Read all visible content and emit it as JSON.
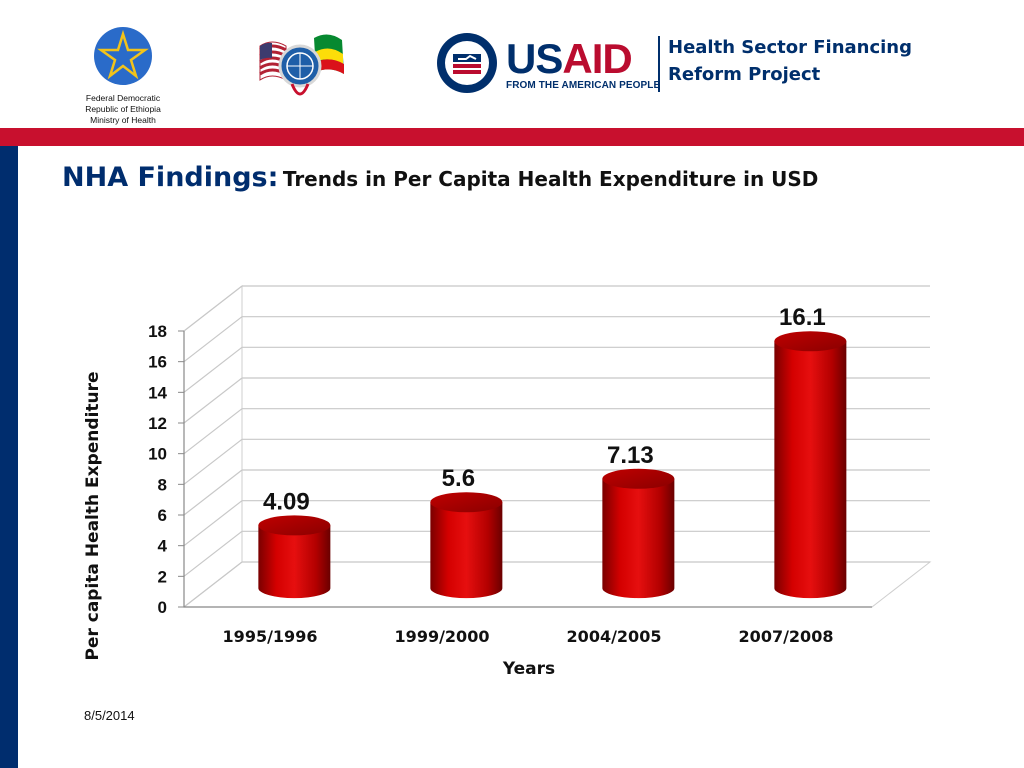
{
  "header": {
    "moh_lines": [
      "Federal Democratic",
      "Republic of Ethiopia",
      "Ministry of Health"
    ],
    "usaid_us": "US",
    "usaid_aid": "AID",
    "usaid_tagline": "FROM THE AMERICAN PEOPLE",
    "project_line1": "Health Sector Financing",
    "project_line2": "Reform Project",
    "colors": {
      "red_bar": "#c8102e",
      "blue_bar": "#002d6e"
    }
  },
  "slide": {
    "title_main": "NHA Findings:",
    "title_sub": "Trends in Per Capita Health Expenditure in USD",
    "date": "8/5/2014"
  },
  "chart_data": {
    "type": "bar",
    "categories": [
      "1995/1996",
      "1999/2000",
      "2004/2005",
      "2007/2008"
    ],
    "values": [
      4.09,
      5.6,
      7.13,
      16.1
    ],
    "data_labels": [
      "4.09",
      "5.6",
      "7.13",
      "16.1"
    ],
    "xlabel": "Years",
    "ylabel": "Per capita Health Expenditure",
    "ylim": [
      0,
      18
    ],
    "yticks": [
      "0",
      "2",
      "4",
      "6",
      "8",
      "10",
      "12",
      "14",
      "16",
      "18"
    ],
    "grid": true,
    "style": "3d-cylinder",
    "bar_color": "#cc0000"
  }
}
